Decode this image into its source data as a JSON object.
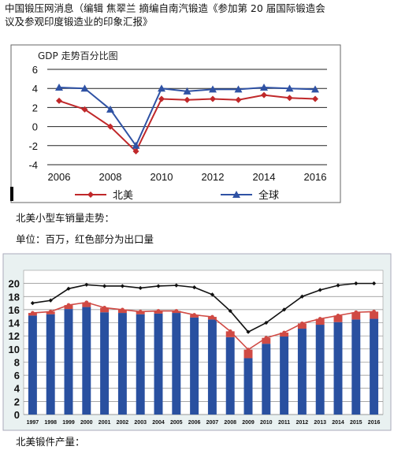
{
  "intro": {
    "line1": "中国锻压网消息（编辑 焦翠兰 摘编自南汽锻造《参加第 20 届国际锻造会",
    "line2": "议及参观印度锻造业的印象汇报》"
  },
  "section_labels": {
    "trend": "北美小型车销量走势：",
    "unit": "单位：百万，红色部分为出口量",
    "forging": "北美锻件产量："
  },
  "chart_data": [
    {
      "type": "line",
      "title": "GDP 走势百分比图",
      "x": [
        2006,
        2007,
        2008,
        2009,
        2010,
        2011,
        2012,
        2013,
        2014,
        2015,
        2016
      ],
      "series": [
        {
          "name": "北美",
          "color": "#c0282a",
          "marker": "diamond",
          "values": [
            2.7,
            1.8,
            0.0,
            -2.6,
            2.9,
            2.8,
            2.9,
            2.8,
            3.3,
            3.0,
            2.9
          ]
        },
        {
          "name": "全球",
          "color": "#2f52a4",
          "marker": "triangle",
          "values": [
            4.1,
            4.0,
            1.8,
            -2.0,
            4.0,
            3.7,
            3.9,
            3.9,
            4.1,
            4.0,
            3.9
          ]
        }
      ],
      "xticks": [
        2006,
        2008,
        2010,
        2012,
        2014,
        2016
      ],
      "yticks": [
        -4,
        -2,
        0,
        2,
        4,
        6
      ],
      "ylim": [
        -4,
        6
      ],
      "grid": "horizontal",
      "legend_position": "bottom"
    },
    {
      "type": "bar",
      "categories": [
        "1997",
        "1998",
        "1999",
        "2000",
        "2001",
        "2002",
        "2003",
        "2004",
        "2005",
        "2006",
        "2007",
        "2008",
        "2009",
        "2010",
        "2011",
        "2012",
        "2013",
        "2014",
        "2015",
        "2016"
      ],
      "series": [
        {
          "color": "#2950a0",
          "values": [
            15.1,
            15.3,
            16.1,
            16.4,
            15.6,
            15.5,
            15.3,
            15.4,
            15.5,
            14.8,
            14.5,
            11.8,
            8.6,
            10.8,
            11.9,
            13.1,
            13.7,
            14.1,
            14.5,
            14.6
          ]
        },
        {
          "color": "#d04a44",
          "values": [
            0.4,
            0.4,
            0.6,
            0.7,
            0.7,
            0.5,
            0.4,
            0.4,
            0.3,
            0.4,
            0.4,
            0.9,
            1.3,
            0.9,
            0.6,
            0.8,
            0.9,
            1.0,
            1.1,
            1.1
          ]
        },
        {
          "type": "line",
          "color": "#111111",
          "marker": "diamond",
          "values": [
            17.0,
            17.4,
            19.2,
            19.8,
            19.6,
            19.6,
            19.3,
            19.6,
            19.7,
            19.4,
            18.3,
            15.8,
            12.6,
            14.0,
            16.0,
            18.0,
            19.0,
            19.7,
            20.0,
            20.0
          ]
        },
        {
          "type": "line",
          "color": "#d04a44",
          "marker": "circle",
          "values": [
            15.5,
            15.7,
            16.7,
            17.1,
            16.3,
            16.0,
            15.7,
            15.8,
            15.8,
            15.2,
            14.9,
            12.7,
            9.9,
            11.7,
            12.5,
            13.9,
            14.6,
            15.1,
            15.6,
            15.7
          ]
        }
      ],
      "yticks": [
        0,
        2,
        4,
        6,
        8,
        10,
        12,
        14,
        16,
        18,
        20
      ],
      "ylim": [
        0,
        22
      ],
      "grid": "horizontal"
    }
  ]
}
